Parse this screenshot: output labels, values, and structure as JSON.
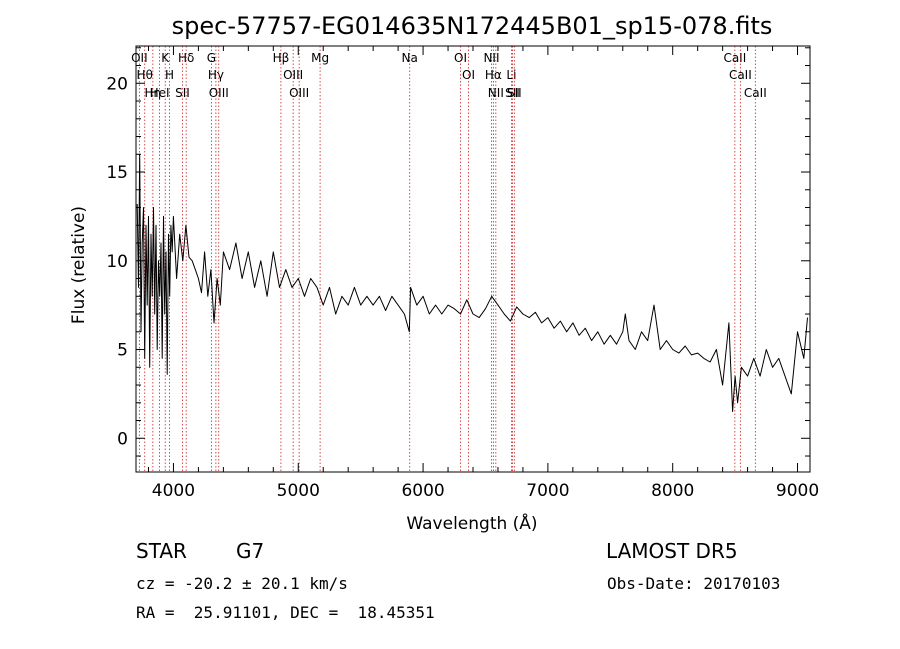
{
  "chart_data": {
    "type": "line",
    "title": "spec-57757-EG014635N172445B01_sp15-078.fits",
    "xlabel": "Wavelength (Å)",
    "ylabel": "Flux (relative)",
    "xlim": [
      3700,
      9100
    ],
    "ylim": [
      -1.9,
      22.1
    ],
    "xticks": [
      4000,
      5000,
      6000,
      7000,
      8000,
      9000
    ],
    "yticks": [
      0,
      5,
      10,
      15,
      20
    ],
    "grid": false,
    "series": [
      {
        "color": "#000000",
        "x": [
          3710,
          3720,
          3730,
          3740,
          3750,
          3760,
          3770,
          3780,
          3790,
          3800,
          3810,
          3820,
          3830,
          3840,
          3850,
          3860,
          3870,
          3880,
          3890,
          3900,
          3910,
          3920,
          3930,
          3940,
          3950,
          3960,
          3970,
          3980,
          3990,
          4000,
          4025,
          4050,
          4075,
          4100,
          4125,
          4150,
          4175,
          4200,
          4225,
          4250,
          4275,
          4300,
          4325,
          4350,
          4375,
          4400,
          4450,
          4500,
          4550,
          4600,
          4650,
          4700,
          4750,
          4800,
          4850,
          4900,
          4950,
          5000,
          5050,
          5100,
          5150,
          5200,
          5250,
          5300,
          5350,
          5400,
          5450,
          5500,
          5550,
          5600,
          5650,
          5700,
          5750,
          5800,
          5850,
          5890,
          5900,
          5950,
          6000,
          6050,
          6100,
          6150,
          6200,
          6250,
          6300,
          6350,
          6400,
          6450,
          6500,
          6550,
          6600,
          6650,
          6700,
          6750,
          6800,
          6850,
          6900,
          6950,
          7000,
          7050,
          7100,
          7150,
          7200,
          7250,
          7300,
          7350,
          7400,
          7450,
          7500,
          7550,
          7600,
          7620,
          7650,
          7700,
          7750,
          7800,
          7850,
          7900,
          7950,
          8000,
          8050,
          8100,
          8150,
          8200,
          8250,
          8300,
          8350,
          8400,
          8450,
          8480,
          8500,
          8520,
          8550,
          8600,
          8650,
          8700,
          8750,
          8800,
          8850,
          8900,
          8950,
          9000,
          9050,
          9080
        ],
        "values": [
          13.2,
          8.5,
          16.0,
          6.0,
          11.0,
          13.0,
          4.5,
          12.0,
          7.5,
          12.5,
          4.0,
          11.5,
          8.0,
          13.0,
          7.0,
          12.0,
          5.0,
          10.0,
          8.0,
          11.0,
          4.5,
          12.5,
          7.0,
          10.5,
          3.6,
          11.5,
          8.0,
          12.0,
          10.5,
          12.5,
          9.0,
          11.5,
          10.0,
          12.0,
          10.2,
          10.0,
          9.5,
          9.0,
          8.2,
          10.5,
          8.0,
          9.5,
          6.5,
          9.0,
          7.5,
          10.5,
          9.5,
          11.0,
          9.0,
          10.5,
          8.5,
          10.0,
          8.0,
          10.5,
          8.5,
          9.5,
          8.5,
          9.0,
          8.0,
          9.0,
          8.5,
          7.5,
          8.5,
          7.0,
          8.0,
          7.5,
          8.5,
          7.5,
          8.0,
          7.5,
          8.0,
          7.2,
          8.0,
          7.5,
          7.0,
          6.0,
          8.5,
          7.5,
          8.0,
          7.0,
          7.5,
          7.0,
          7.5,
          7.3,
          7.0,
          7.8,
          7.0,
          6.8,
          7.3,
          8.0,
          7.5,
          7.0,
          6.6,
          7.4,
          7.0,
          6.8,
          7.1,
          6.5,
          6.8,
          6.2,
          6.6,
          6.0,
          6.5,
          5.8,
          6.2,
          5.5,
          6.0,
          5.3,
          5.8,
          5.3,
          6.0,
          7.0,
          5.5,
          5.0,
          6.0,
          5.5,
          7.5,
          5.0,
          5.5,
          5.0,
          4.8,
          5.2,
          4.7,
          4.8,
          4.5,
          4.3,
          5.0,
          3.0,
          6.5,
          1.5,
          3.5,
          2.0,
          4.0,
          3.5,
          4.5,
          3.5,
          5.0,
          4.0,
          4.5,
          3.5,
          2.5,
          6.0,
          4.5,
          6.8
        ]
      }
    ],
    "lines": [
      {
        "x": 3727,
        "label": "OII"
      },
      {
        "x": 3770,
        "label": "Hθ"
      },
      {
        "x": 3835,
        "label": "Hη"
      },
      {
        "x": 3889,
        "label": "HeI"
      },
      {
        "x": 3934,
        "label": "K"
      },
      {
        "x": 3969,
        "label": "H"
      },
      {
        "x": 4072,
        "label": "SII"
      },
      {
        "x": 4102,
        "label": "Hδ"
      },
      {
        "x": 4304,
        "label": "G"
      },
      {
        "x": 4340,
        "label": "Hγ"
      },
      {
        "x": 4363,
        "label": "OIII"
      },
      {
        "x": 4861,
        "label": "Hβ"
      },
      {
        "x": 4959,
        "label": "OIII"
      },
      {
        "x": 5007,
        "label": "OIII"
      },
      {
        "x": 5175,
        "label": "Mg"
      },
      {
        "x": 5893,
        "label": "Na"
      },
      {
        "x": 6300,
        "label": "OI"
      },
      {
        "x": 6364,
        "label": "OI"
      },
      {
        "x": 6548,
        "label": "NII"
      },
      {
        "x": 6563,
        "label": "Hα"
      },
      {
        "x": 6583,
        "label": "NII"
      },
      {
        "x": 6708,
        "label": "Li"
      },
      {
        "x": 6716,
        "label": "SII"
      },
      {
        "x": 6731,
        "label": "SII"
      },
      {
        "x": 8498,
        "label": "CaII"
      },
      {
        "x": 8542,
        "label": "CaII"
      },
      {
        "x": 8662,
        "label": "CaII"
      }
    ]
  },
  "info": {
    "object_class": "STAR",
    "subclass": "G7",
    "survey": "LAMOST DR5",
    "redshift": "cz = -20.2 ± 20.1 km/s",
    "obs_date": "Obs-Date: 20170103",
    "coords": "RA =  25.91101, DEC =  18.45351"
  }
}
